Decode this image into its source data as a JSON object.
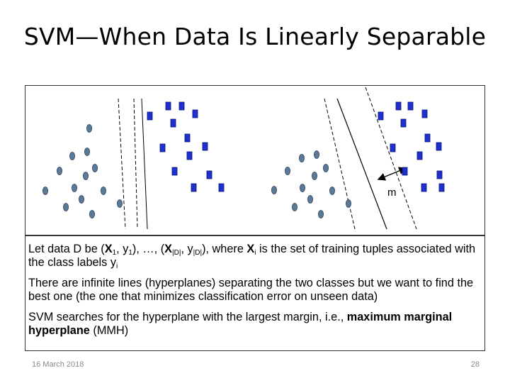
{
  "slide": {
    "title": "SVM—When Data Is Linearly Separable",
    "margin_label": "m",
    "bullets": {
      "p1": {
        "t1": "Let data D be (",
        "x1": "X",
        "s1": "1",
        "t2": ", y",
        "s2": "1",
        "t3": "), …, (",
        "xd": "X",
        "sd": "|D|",
        "t4": ", y",
        "sd2": "|D|",
        "t5": "), where ",
        "xi": "X",
        "si": "i",
        "t6": " is the set of training tuples associated with the class labels y",
        "si2": "i"
      },
      "p2": "There are infinite lines (hyperplanes) separating the two classes but we want to find the best one (the one that minimizes classification error on unseen data)",
      "p3": {
        "t1": "SVM searches for the hyperplane with the largest margin, i.e., ",
        "b1": "maximum marginal hyperplane",
        "t2": " (MMH)"
      }
    },
    "footer": {
      "date": "16 March 2018",
      "page": "28"
    }
  },
  "colors": {
    "circle_fill": "#5b7a99",
    "square_fill": "#1f2fd1"
  }
}
